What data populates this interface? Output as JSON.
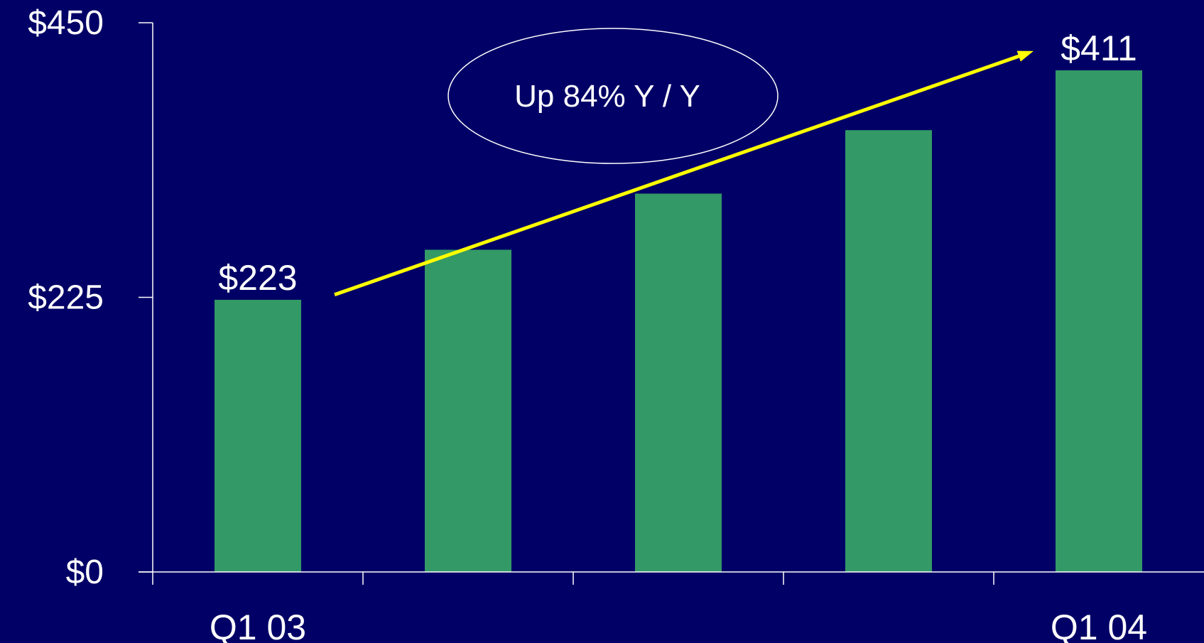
{
  "chart_data": {
    "type": "bar",
    "categories": [
      "Q1 03",
      "",
      "",
      "",
      "Q1 04"
    ],
    "values": [
      223,
      264,
      310,
      362,
      411
    ],
    "data_labels": [
      "$223",
      "",
      "",
      "",
      "$411"
    ],
    "title": "",
    "xlabel": "",
    "ylabel": "",
    "ylim": [
      0,
      450
    ],
    "yticks": [
      0,
      225,
      450
    ],
    "ytick_labels": [
      "$0",
      "$225",
      "$450"
    ],
    "grid": false,
    "legend": "none",
    "annotation": {
      "text": "Up 84% Y / Y",
      "shape": "ellipse",
      "arrow": {
        "from_category": 0,
        "to_category": 4,
        "from_value": 240,
        "to_value": 400
      }
    }
  },
  "colors": {
    "background": "#000066",
    "bar": "#339966",
    "axis": "#ffffff",
    "text": "#ffffff",
    "arrow": "#ffff00",
    "annotation_outline": "#ffffff"
  }
}
